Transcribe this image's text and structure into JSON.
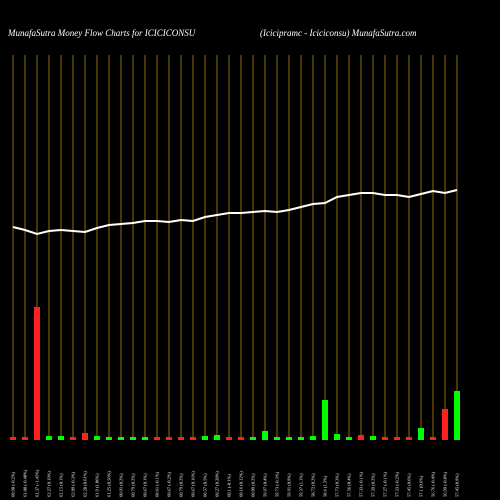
{
  "chart_data": {
    "type": "money-flow",
    "title": "MunafaSutra  Money Flow  Charts for ICICICONSU",
    "subtitle": "(Icicipramc -   Iciciconsu) MunafaSutra.com",
    "ylim": [
      0,
      385
    ],
    "categories": [
      "60.98 (-0.2%)",
      "61.08 (-0.48%)",
      "61.37 (-1.45%)",
      "62.27 (0.19%)",
      "62.15 (0.1%)",
      "62.09 (-0.3%)",
      "62.28 (0.61%)",
      "61.9 (1.06%)",
      "61.25 (0.56%)",
      "60.91 (0.2%)",
      "60.79 (0.2%)",
      "60.67 (0.1%)",
      "60.61 (-0.1%)",
      "60.67 (-0.2%)",
      "60.79 (0.2%)",
      "60.67 (0.16%)",
      "60.57 (0.5%)",
      "60.27 (0.28%)",
      "60.1 (-0.1%)",
      "60.16 (0.12%)",
      "60.09 (0.2%)",
      "59.97 (0.4%)",
      "59.73 (-0.3%)",
      "59.91 (0.9%)",
      "59.37 (1.1%)",
      "58.72 (0.2%)",
      "58.6 (1.5%)",
      "57.73 (0.3%)",
      "57.56 (0.4%)",
      "57.33 (-0.1%)",
      "57.39 (0.2%)",
      "57.27 (-0.1%)",
      "57.33 (-0.2%)",
      "57.45 (0.6%)",
      "57.1 (0.6%)",
      "56.76 (-0.4%)",
      "56.99 (-0.8%)",
      "57.45 (0.9%)"
    ],
    "values": [
      3,
      3,
      133,
      4,
      4,
      3,
      7,
      4,
      3,
      3,
      3,
      3,
      3,
      3,
      3,
      3,
      4,
      5,
      3,
      3,
      3,
      9,
      3,
      3,
      3,
      4,
      40,
      6,
      3,
      5,
      4,
      3,
      3,
      3,
      12,
      3,
      31,
      49
    ],
    "bar_colors": [
      "#ff2020",
      "#ff2020",
      "#ff2020",
      "#00ff00",
      "#00ff00",
      "#ff2020",
      "#ff2020",
      "#00ff00",
      "#00ff00",
      "#00ff00",
      "#00ff00",
      "#00ff00",
      "#ff2020",
      "#ff2020",
      "#ff2020",
      "#ff2020",
      "#00ff00",
      "#00ff00",
      "#ff2020",
      "#ff2020",
      "#00ff00",
      "#00ff00",
      "#00ff00",
      "#00ff00",
      "#00ff00",
      "#00ff00",
      "#00ff00",
      "#00ff00",
      "#00ff00",
      "#ff2020",
      "#00ff00",
      "#ff2020",
      "#ff2020",
      "#ff2020",
      "#00ff00",
      "#ff2020",
      "#ff2020",
      "#00ff00"
    ],
    "line": {
      "color": "#ffffff",
      "values": [
        213,
        210,
        206,
        209,
        210,
        209,
        208,
        212,
        215,
        216,
        217,
        219,
        219,
        218,
        220,
        219,
        223,
        225,
        227,
        227,
        228,
        229,
        228,
        230,
        233,
        236,
        237,
        243,
        245,
        247,
        247,
        245,
        245,
        243,
        246,
        249,
        247,
        250
      ]
    },
    "grid_color": "#b8860b"
  }
}
